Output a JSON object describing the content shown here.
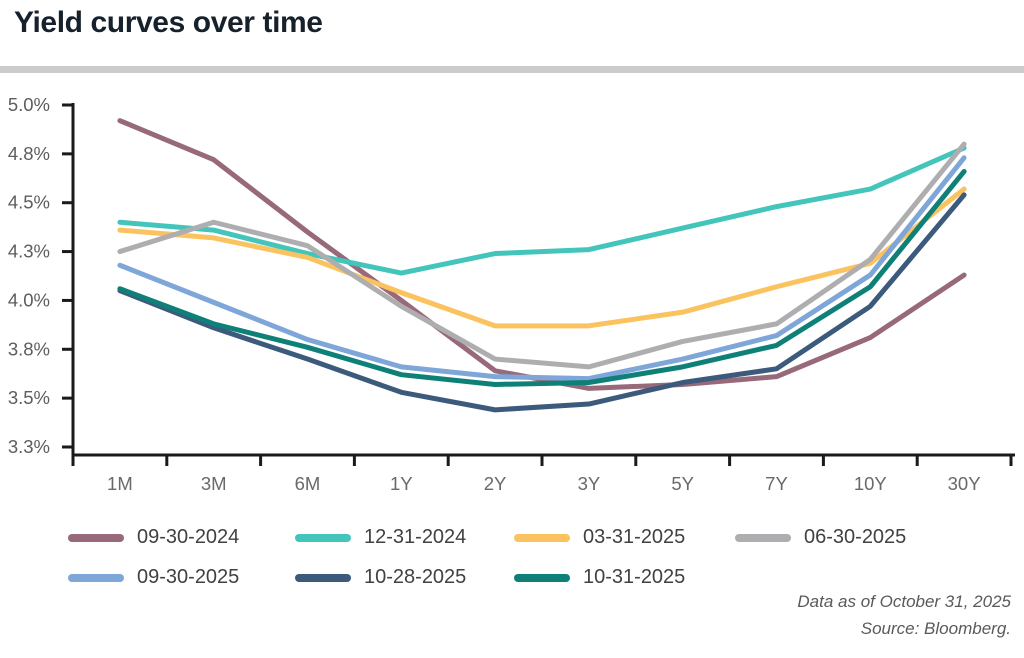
{
  "title": "Yield curves over time",
  "chart_data": {
    "type": "line",
    "title": "Yield curves over time",
    "categories": [
      "1M",
      "3M",
      "6M",
      "1Y",
      "2Y",
      "3Y",
      "5Y",
      "7Y",
      "10Y",
      "30Y"
    ],
    "y_axis": {
      "min": 3.25,
      "max": 5.0,
      "step": 0.25,
      "tick_labels_top_to_bottom": [
        "5.0%",
        "4.8%",
        "4.5%",
        "4.3%",
        "4.0%",
        "3.8%",
        "3.5%",
        "3.3%"
      ],
      "unit": "percent",
      "grid": false
    },
    "legend_position": "bottom",
    "series": [
      {
        "name": "09-30-2024",
        "color": "#97697A",
        "values": [
          4.92,
          4.72,
          4.35,
          4.0,
          3.64,
          3.55,
          3.57,
          3.61,
          3.81,
          4.13
        ]
      },
      {
        "name": "12-31-2024",
        "color": "#44C5BC",
        "values": [
          4.4,
          4.36,
          4.24,
          4.14,
          4.24,
          4.26,
          4.37,
          4.48,
          4.57,
          4.78
        ]
      },
      {
        "name": "03-31-2025",
        "color": "#FAC35F",
        "values": [
          4.36,
          4.32,
          4.22,
          4.04,
          3.87,
          3.87,
          3.94,
          4.07,
          4.19,
          4.57
        ]
      },
      {
        "name": "06-30-2025",
        "color": "#AEAEB0",
        "values": [
          4.25,
          4.4,
          4.28,
          3.97,
          3.7,
          3.66,
          3.79,
          3.88,
          4.21,
          4.8
        ]
      },
      {
        "name": "09-30-2025",
        "color": "#7EA6D8",
        "values": [
          4.18,
          3.99,
          3.8,
          3.66,
          3.61,
          3.6,
          3.7,
          3.82,
          4.13,
          4.73
        ]
      },
      {
        "name": "10-28-2025",
        "color": "#3C5B7C",
        "values": [
          4.05,
          3.86,
          3.7,
          3.53,
          3.44,
          3.47,
          3.58,
          3.65,
          3.97,
          4.54
        ]
      },
      {
        "name": "10-31-2025",
        "color": "#0F8078",
        "values": [
          4.06,
          3.88,
          3.76,
          3.62,
          3.57,
          3.58,
          3.66,
          3.77,
          4.07,
          4.66
        ]
      }
    ]
  },
  "footer": {
    "line1": "Data as of October 31, 2025",
    "line2": "Source: Bloomberg."
  },
  "colors": {
    "title": "#16212C",
    "divider": "#CCCCCC",
    "axis": "#1A1A1A",
    "y_tick_label": "#5C5D5F",
    "x_tick_label": "#68696B",
    "legend_label": "#3F4143",
    "footer": "#595A5C",
    "background": "#FFFFFF"
  }
}
